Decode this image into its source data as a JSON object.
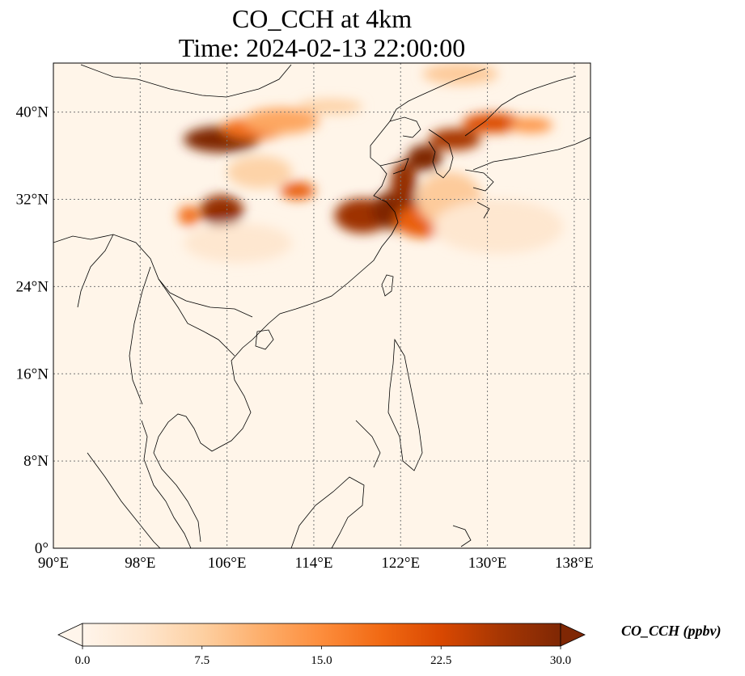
{
  "title": {
    "line1": "CO_CCH at 4km",
    "line2": "Time: 2024-02-13 22:00:00"
  },
  "map": {
    "lon_range": [
      90,
      139.5
    ],
    "lat_range": [
      0,
      44.5
    ],
    "lon_ticks": [
      {
        "value": 90,
        "label": "90°E"
      },
      {
        "value": 98,
        "label": "98°E"
      },
      {
        "value": 106,
        "label": "106°E"
      },
      {
        "value": 114,
        "label": "114°E"
      },
      {
        "value": 122,
        "label": "122°E"
      },
      {
        "value": 130,
        "label": "130°E"
      },
      {
        "value": 138,
        "label": "138°E"
      }
    ],
    "lat_ticks": [
      {
        "value": 0,
        "label": "0°"
      },
      {
        "value": 8,
        "label": "8°N"
      },
      {
        "value": 16,
        "label": "16°N"
      },
      {
        "value": 24,
        "label": "24°N"
      },
      {
        "value": 32,
        "label": "32°N"
      },
      {
        "value": 40,
        "label": "40°N"
      }
    ],
    "gridlines": true,
    "background_color": "#fff5e9",
    "plumes": [
      {
        "lon": 105.5,
        "lat": 37.5,
        "rx": 3.5,
        "ry": 1.2,
        "value": 30
      },
      {
        "lon": 108.5,
        "lat": 38.5,
        "rx": 3.0,
        "ry": 1.0,
        "value": 18
      },
      {
        "lon": 111.0,
        "lat": 39.2,
        "rx": 3.5,
        "ry": 1.2,
        "value": 12
      },
      {
        "lon": 105.5,
        "lat": 31.0,
        "rx": 2.0,
        "ry": 1.4,
        "value": 28
      },
      {
        "lon": 102.5,
        "lat": 30.5,
        "rx": 1.0,
        "ry": 0.9,
        "value": 18
      },
      {
        "lon": 112.5,
        "lat": 32.8,
        "rx": 1.6,
        "ry": 0.8,
        "value": 20
      },
      {
        "lon": 109.0,
        "lat": 34.5,
        "rx": 3.0,
        "ry": 1.5,
        "value": 7
      },
      {
        "lon": 118.5,
        "lat": 30.5,
        "rx": 2.6,
        "ry": 1.6,
        "value": 27
      },
      {
        "lon": 121.5,
        "lat": 31.0,
        "rx": 2.2,
        "ry": 1.8,
        "value": 30
      },
      {
        "lon": 122.3,
        "lat": 33.5,
        "rx": 1.2,
        "ry": 2.0,
        "value": 28
      },
      {
        "lon": 124.2,
        "lat": 35.8,
        "rx": 1.6,
        "ry": 1.2,
        "value": 30
      },
      {
        "lon": 127.0,
        "lat": 37.5,
        "rx": 2.4,
        "ry": 1.0,
        "value": 26
      },
      {
        "lon": 130.5,
        "lat": 39.0,
        "rx": 2.8,
        "ry": 0.9,
        "value": 22
      },
      {
        "lon": 134.0,
        "lat": 38.8,
        "rx": 2.0,
        "ry": 0.7,
        "value": 14
      },
      {
        "lon": 124.0,
        "lat": 30.0,
        "rx": 2.5,
        "ry": 1.5,
        "value": 20
      },
      {
        "lon": 126.5,
        "lat": 32.0,
        "rx": 3.0,
        "ry": 2.5,
        "value": 8
      },
      {
        "lon": 127.5,
        "lat": 43.5,
        "rx": 3.5,
        "ry": 1.0,
        "value": 8
      },
      {
        "lon": 115.5,
        "lat": 40.5,
        "rx": 3.0,
        "ry": 0.7,
        "value": 7
      },
      {
        "lon": 107.0,
        "lat": 28.0,
        "rx": 5.0,
        "ry": 1.8,
        "value": 3.5
      },
      {
        "lon": 131.0,
        "lat": 29.5,
        "rx": 6.0,
        "ry": 2.5,
        "value": 3.5
      }
    ]
  },
  "colorbar": {
    "label": "CO_CCH (ppbv)",
    "min": 0,
    "max": 30,
    "extend": "both",
    "stops": [
      "#fff5eb",
      "#fee6ce",
      "#fdd0a2",
      "#fdae6b",
      "#fd8d3c",
      "#f16913",
      "#d94801",
      "#a63603",
      "#7f2704"
    ],
    "ticks": [
      {
        "value": 0,
        "label": "0.0"
      },
      {
        "value": 7.5,
        "label": "7.5"
      },
      {
        "value": 15,
        "label": "15.0"
      },
      {
        "value": 22.5,
        "label": "22.5"
      },
      {
        "value": 30,
        "label": "30.0"
      }
    ]
  }
}
